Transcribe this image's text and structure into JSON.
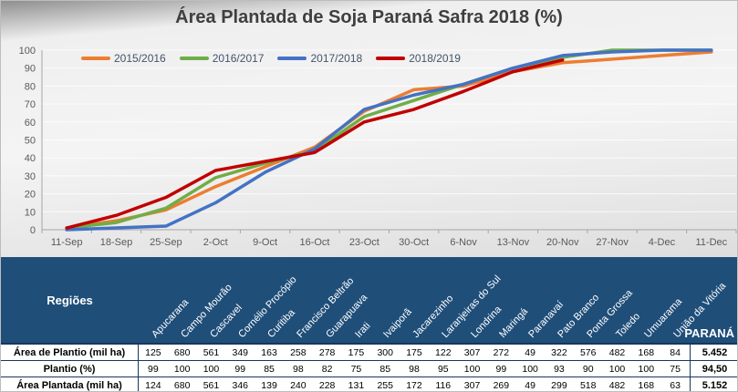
{
  "chart_data": {
    "type": "line",
    "title": "Área Plantada de Soja Paraná Safra 2018 (%)",
    "xlabel": "",
    "ylabel": "",
    "ylim": [
      0,
      100
    ],
    "ytick_step": 10,
    "grid": true,
    "legend_position": "top-left-inside",
    "categories": [
      "11-Sep",
      "18-Sep",
      "25-Sep",
      "2-Oct",
      "9-Oct",
      "16-Oct",
      "23-Oct",
      "30-Oct",
      "6-Nov",
      "13-Nov",
      "20-Nov",
      "27-Nov",
      "4-Dec",
      "11-Dec"
    ],
    "series": [
      {
        "name": "2015/2016",
        "color": "#ED7D31",
        "values": [
          1,
          5,
          11,
          24,
          35,
          46,
          66,
          78,
          80,
          88,
          93,
          95,
          97,
          99
        ]
      },
      {
        "name": "2016/2017",
        "color": "#70AD47",
        "values": [
          1,
          4,
          12,
          29,
          37,
          44,
          63,
          72,
          81,
          90,
          96,
          100,
          100,
          100
        ]
      },
      {
        "name": "2017/2018",
        "color": "#4472C4",
        "values": [
          0,
          1,
          2,
          15,
          32,
          45,
          67,
          75,
          81,
          90,
          97,
          99,
          100,
          100
        ]
      },
      {
        "name": "2018/2019",
        "color": "#C00000",
        "values": [
          1,
          8,
          18,
          33,
          38,
          43,
          60,
          67,
          77,
          88,
          94.5,
          null,
          null,
          null
        ]
      }
    ],
    "axis_color": "#a6a6a6",
    "tick_label_color": "#595959"
  },
  "table": {
    "header_bg": "#1F4E79",
    "corner_label": "Regiões",
    "total_label": "PARANÁ",
    "regions": [
      "Apucarana",
      "Campo Mourão",
      "Cascavel",
      "Cornélio Procópio",
      "Curitiba",
      "Francisco Beltrão",
      "Guarapuava",
      "Irati",
      "Ivaiporã",
      "Jacarezinho",
      "Laranjeiras do Sul",
      "Londrina",
      "Maringá",
      "Paranavaí",
      "Pato Branco",
      "Ponta Grossa",
      "Toledo",
      "Umuarama",
      "União da Vitória"
    ],
    "rows": [
      {
        "label": "Área de Plantio (mil ha)",
        "values": [
          125,
          680,
          561,
          349,
          163,
          258,
          278,
          175,
          300,
          175,
          122,
          307,
          272,
          49,
          322,
          576,
          482,
          168,
          84
        ],
        "total": "5.452"
      },
      {
        "label": "Plantio (%)",
        "values": [
          99,
          100,
          100,
          99,
          85,
          98,
          82,
          75,
          85,
          98,
          95,
          100,
          99,
          100,
          93,
          90,
          100,
          100,
          75
        ],
        "total": "94,50"
      },
      {
        "label": "Área Plantada (mil ha)",
        "values": [
          124,
          680,
          561,
          346,
          139,
          240,
          228,
          131,
          255,
          172,
          116,
          307,
          269,
          49,
          299,
          518,
          482,
          168,
          63
        ],
        "total": "5.152"
      }
    ]
  }
}
